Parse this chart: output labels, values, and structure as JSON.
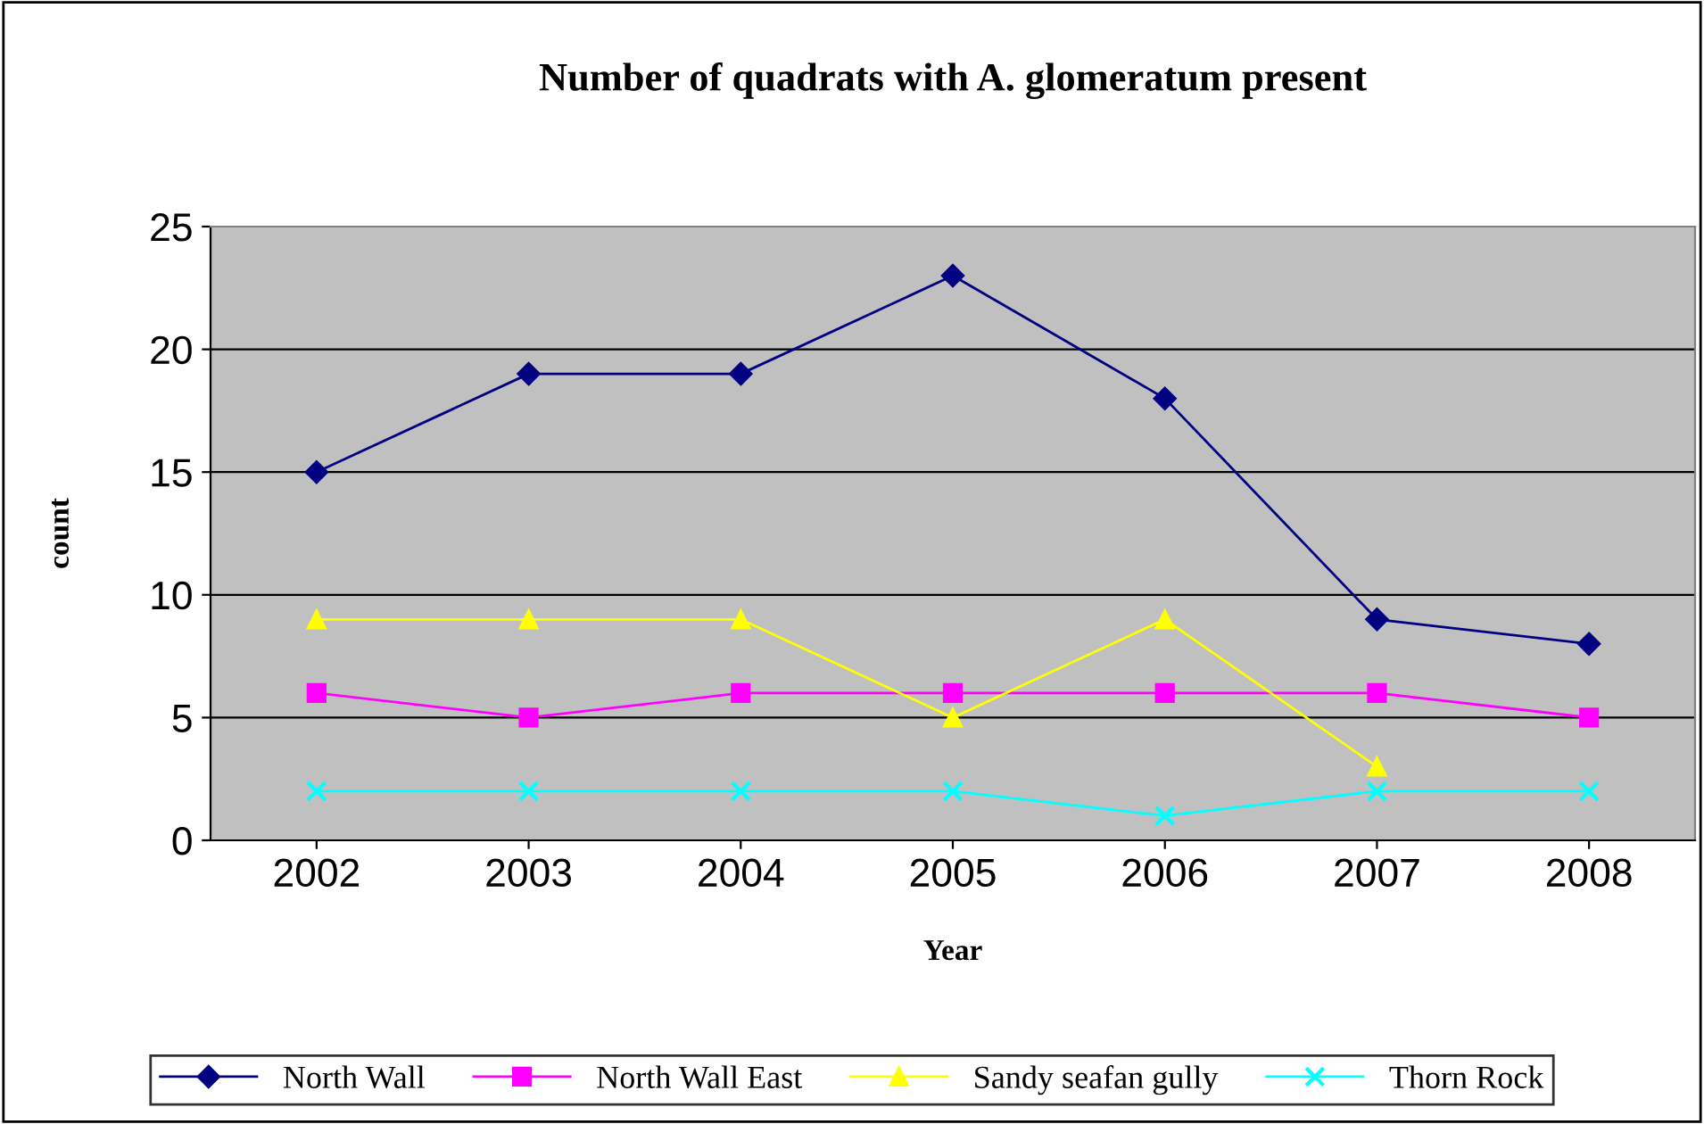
{
  "chart_data": {
    "type": "line",
    "title": "Number of quadrats with A. glomeratum present",
    "xlabel": "Year",
    "ylabel": "count",
    "categories": [
      "2002",
      "2003",
      "2004",
      "2005",
      "2006",
      "2007",
      "2008"
    ],
    "series": [
      {
        "name": "North Wall",
        "color": "#000080",
        "marker": "diamond",
        "values": [
          15,
          19,
          19,
          23,
          18,
          9,
          8
        ]
      },
      {
        "name": "North Wall East",
        "color": "#ff00ff",
        "marker": "square",
        "values": [
          6,
          5,
          6,
          6,
          6,
          6,
          5
        ]
      },
      {
        "name": "Sandy seafan gully",
        "color": "#ffff00",
        "marker": "triangle",
        "values": [
          9,
          9,
          9,
          5,
          9,
          3,
          null
        ]
      },
      {
        "name": "Thorn Rock",
        "color": "#00ffff",
        "marker": "cross",
        "values": [
          2,
          2,
          2,
          2,
          1,
          2,
          2
        ]
      }
    ],
    "ylim": [
      0,
      25
    ],
    "yticks": [
      0,
      5,
      10,
      15,
      20,
      25
    ],
    "grid": "y",
    "legend": "bottom",
    "line_style": "solid"
  }
}
